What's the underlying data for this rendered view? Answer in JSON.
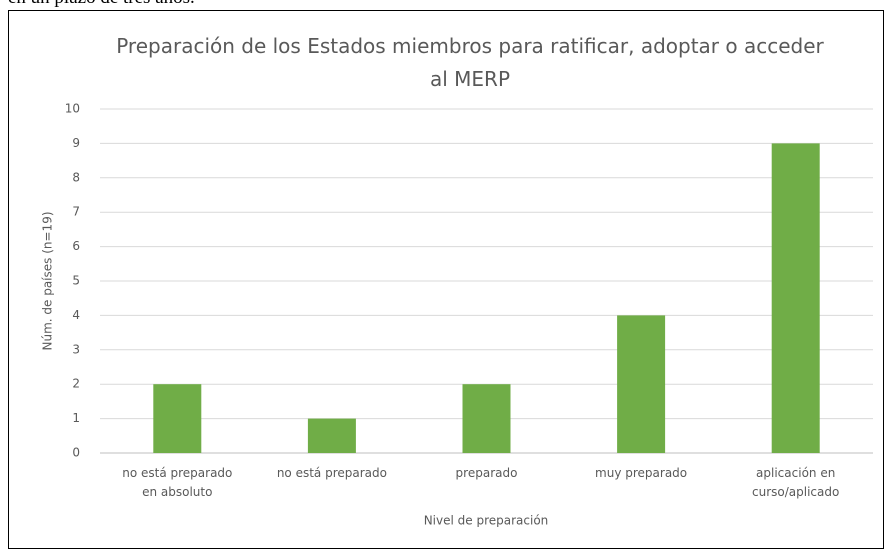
{
  "context_text": "en un plazo de tres años.",
  "chart_data": {
    "type": "bar",
    "title": "Preparación de los Estados miembros para ratificar, adoptar o acceder al MERP",
    "categories": [
      "no está preparado en absoluto",
      "no está preparado",
      "preparado",
      "muy preparado",
      "aplicación en curso/aplicado"
    ],
    "values": [
      2,
      1,
      2,
      4,
      9
    ],
    "color": "#70ad47",
    "xlabel": "Nivel de preparación",
    "ylabel": "Núm. de países (n=19)",
    "ylim": [
      0,
      10
    ],
    "yticks": [
      0,
      1,
      2,
      3,
      4,
      5,
      6,
      7,
      8,
      9,
      10
    ],
    "grid": true
  }
}
